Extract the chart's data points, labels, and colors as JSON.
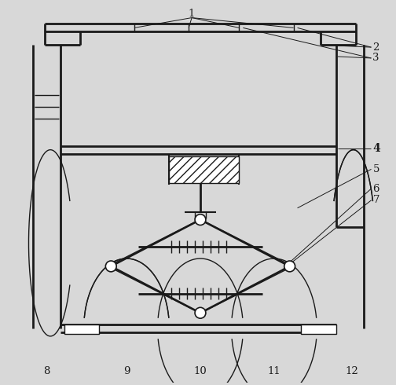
{
  "background_color": "#d8d8d8",
  "line_color": "#1a1a1a",
  "fig_width": 5.04,
  "fig_height": 4.9,
  "dpi": 100
}
